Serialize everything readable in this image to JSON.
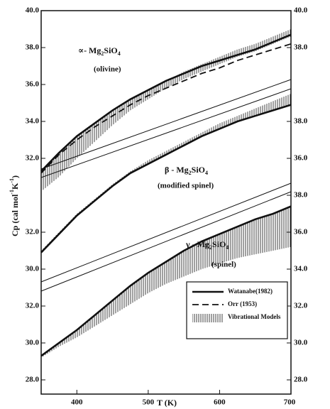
{
  "chart_data": {
    "type": "line",
    "xlabel": "T (K)",
    "ylabel_parts": [
      "Cp (cal mol",
      "-1",
      "K",
      "-1",
      ")"
    ],
    "x": [
      350,
      375,
      400,
      425,
      450,
      475,
      500,
      525,
      550,
      575,
      600,
      625,
      650,
      675,
      700
    ],
    "xlim": [
      350,
      700
    ],
    "xticks": [
      400,
      500,
      600,
      700
    ],
    "legend": "lower right",
    "panels": [
      {
        "label_parts": [
          "∝- Mg",
          "2",
          "SiO",
          "4"
        ],
        "sublabel": "(olivine)",
        "ylim": [
          19.23,
          40
        ],
        "y2lim": [
          19.23,
          40
        ],
        "yticks": [
          {
            "value": 40,
            "label": "40.0"
          },
          {
            "value": 38,
            "label": "38.0"
          },
          {
            "value": 36,
            "label": "36.0"
          },
          {
            "value": 34,
            "label": "34.0"
          },
          {
            "value": 32,
            "label": "32.0"
          }
        ],
        "y2ticks": [
          {
            "value": 40,
            "label": "40.0"
          },
          {
            "value": 38,
            "label": "38.0"
          }
        ],
        "series": [
          {
            "name": "Watanabe(1982)",
            "style": "solid",
            "color": "#111111",
            "values": [
              31.3,
              32.3,
              33.2,
              33.9,
              34.6,
              35.2,
              35.7,
              36.2,
              36.6,
              37.0,
              37.3,
              37.6,
              37.9,
              38.3,
              38.7
            ]
          },
          {
            "name": "Orr (1953)",
            "style": "dashed",
            "color": "#111111",
            "values": [
              31.2,
              32.2,
              33.0,
              33.7,
              34.3,
              34.9,
              35.4,
              35.8,
              36.2,
              36.6,
              36.9,
              37.3,
              37.6,
              37.9,
              38.2
            ]
          },
          {
            "name": "Vibrational Models",
            "style": "hatch",
            "color": "#111111",
            "low": [
              30.2,
              31.0,
              32.0,
              32.9,
              33.8,
              34.6,
              35.2,
              35.8,
              36.3,
              36.7,
              37.1,
              37.5,
              37.8,
              38.2,
              38.6
            ],
            "high": [
              31.3,
              32.3,
              33.2,
              33.9,
              34.6,
              35.2,
              35.7,
              36.2,
              36.7,
              37.1,
              37.5,
              37.9,
              38.2,
              38.6,
              39.0
            ]
          }
        ]
      },
      {
        "label_parts": [
          "β - Mg",
          "2",
          "SiO",
          "4"
        ],
        "sublabel": "(modified spinel)",
        "ylim": [
          23.23,
          44
        ],
        "y2lim": [
          23.23,
          44
        ],
        "yticks": [
          {
            "value": 32,
            "label": "32.0"
          },
          {
            "value": 30,
            "label": "30.0"
          }
        ],
        "y2ticks": [
          {
            "value": 38,
            "label": "38.0"
          },
          {
            "value": 36,
            "label": "36.0"
          }
        ],
        "series": [
          {
            "style": "solid",
            "color": "#111111",
            "values": [
              30.9,
              31.9,
              32.9,
              33.7,
              34.5,
              35.2,
              35.7,
              36.2,
              36.7,
              37.2,
              37.6,
              38.0,
              38.3,
              38.6,
              38.9
            ]
          },
          {
            "style": "hatch",
            "color": "#111111",
            "low": [
              30.9,
              31.9,
              32.9,
              33.7,
              34.5,
              35.2,
              35.7,
              36.2,
              36.7,
              37.2,
              37.6,
              38.0,
              38.3,
              38.6,
              38.9
            ],
            "high": [
              31.0,
              32.0,
              33.0,
              33.8,
              34.6,
              35.3,
              35.9,
              36.4,
              36.9,
              37.4,
              37.9,
              38.3,
              38.7,
              39.1,
              39.5
            ]
          }
        ]
      },
      {
        "label_parts": [
          "γ - Mg",
          "2",
          "SiO",
          "4"
        ],
        "sublabel": "(spinel)",
        "ylim": [
          27.23,
          48
        ],
        "y2lim": [
          27.23,
          48
        ],
        "yticks": [
          {
            "value": 32,
            "label": "32.0"
          },
          {
            "value": 30,
            "label": "30.0"
          },
          {
            "value": 28,
            "label": "28.0"
          }
        ],
        "y2ticks": [
          {
            "value": 38,
            "label": "38.0"
          },
          {
            "value": 36,
            "label": "36.0"
          },
          {
            "value": 34,
            "label": "34.0"
          },
          {
            "value": 32,
            "label": "32.0"
          },
          {
            "value": 30,
            "label": "30.0"
          },
          {
            "value": 28,
            "label": "28.0"
          }
        ],
        "series": [
          {
            "style": "solid",
            "color": "#111111",
            "values": [
              29.3,
              30.0,
              30.7,
              31.5,
              32.3,
              33.1,
              33.8,
              34.4,
              35.0,
              35.5,
              35.9,
              36.3,
              36.7,
              37.0,
              37.4
            ]
          },
          {
            "style": "hatch",
            "color": "#111111",
            "low": [
              29.2,
              29.8,
              30.3,
              30.9,
              31.5,
              32.1,
              32.7,
              33.2,
              33.6,
              34.0,
              34.3,
              34.6,
              34.8,
              35.0,
              35.2
            ],
            "high": [
              29.3,
              30.0,
              30.7,
              31.5,
              32.3,
              33.1,
              33.8,
              34.4,
              35.0,
              35.5,
              35.9,
              36.3,
              36.7,
              37.0,
              37.4
            ]
          }
        ]
      }
    ]
  }
}
